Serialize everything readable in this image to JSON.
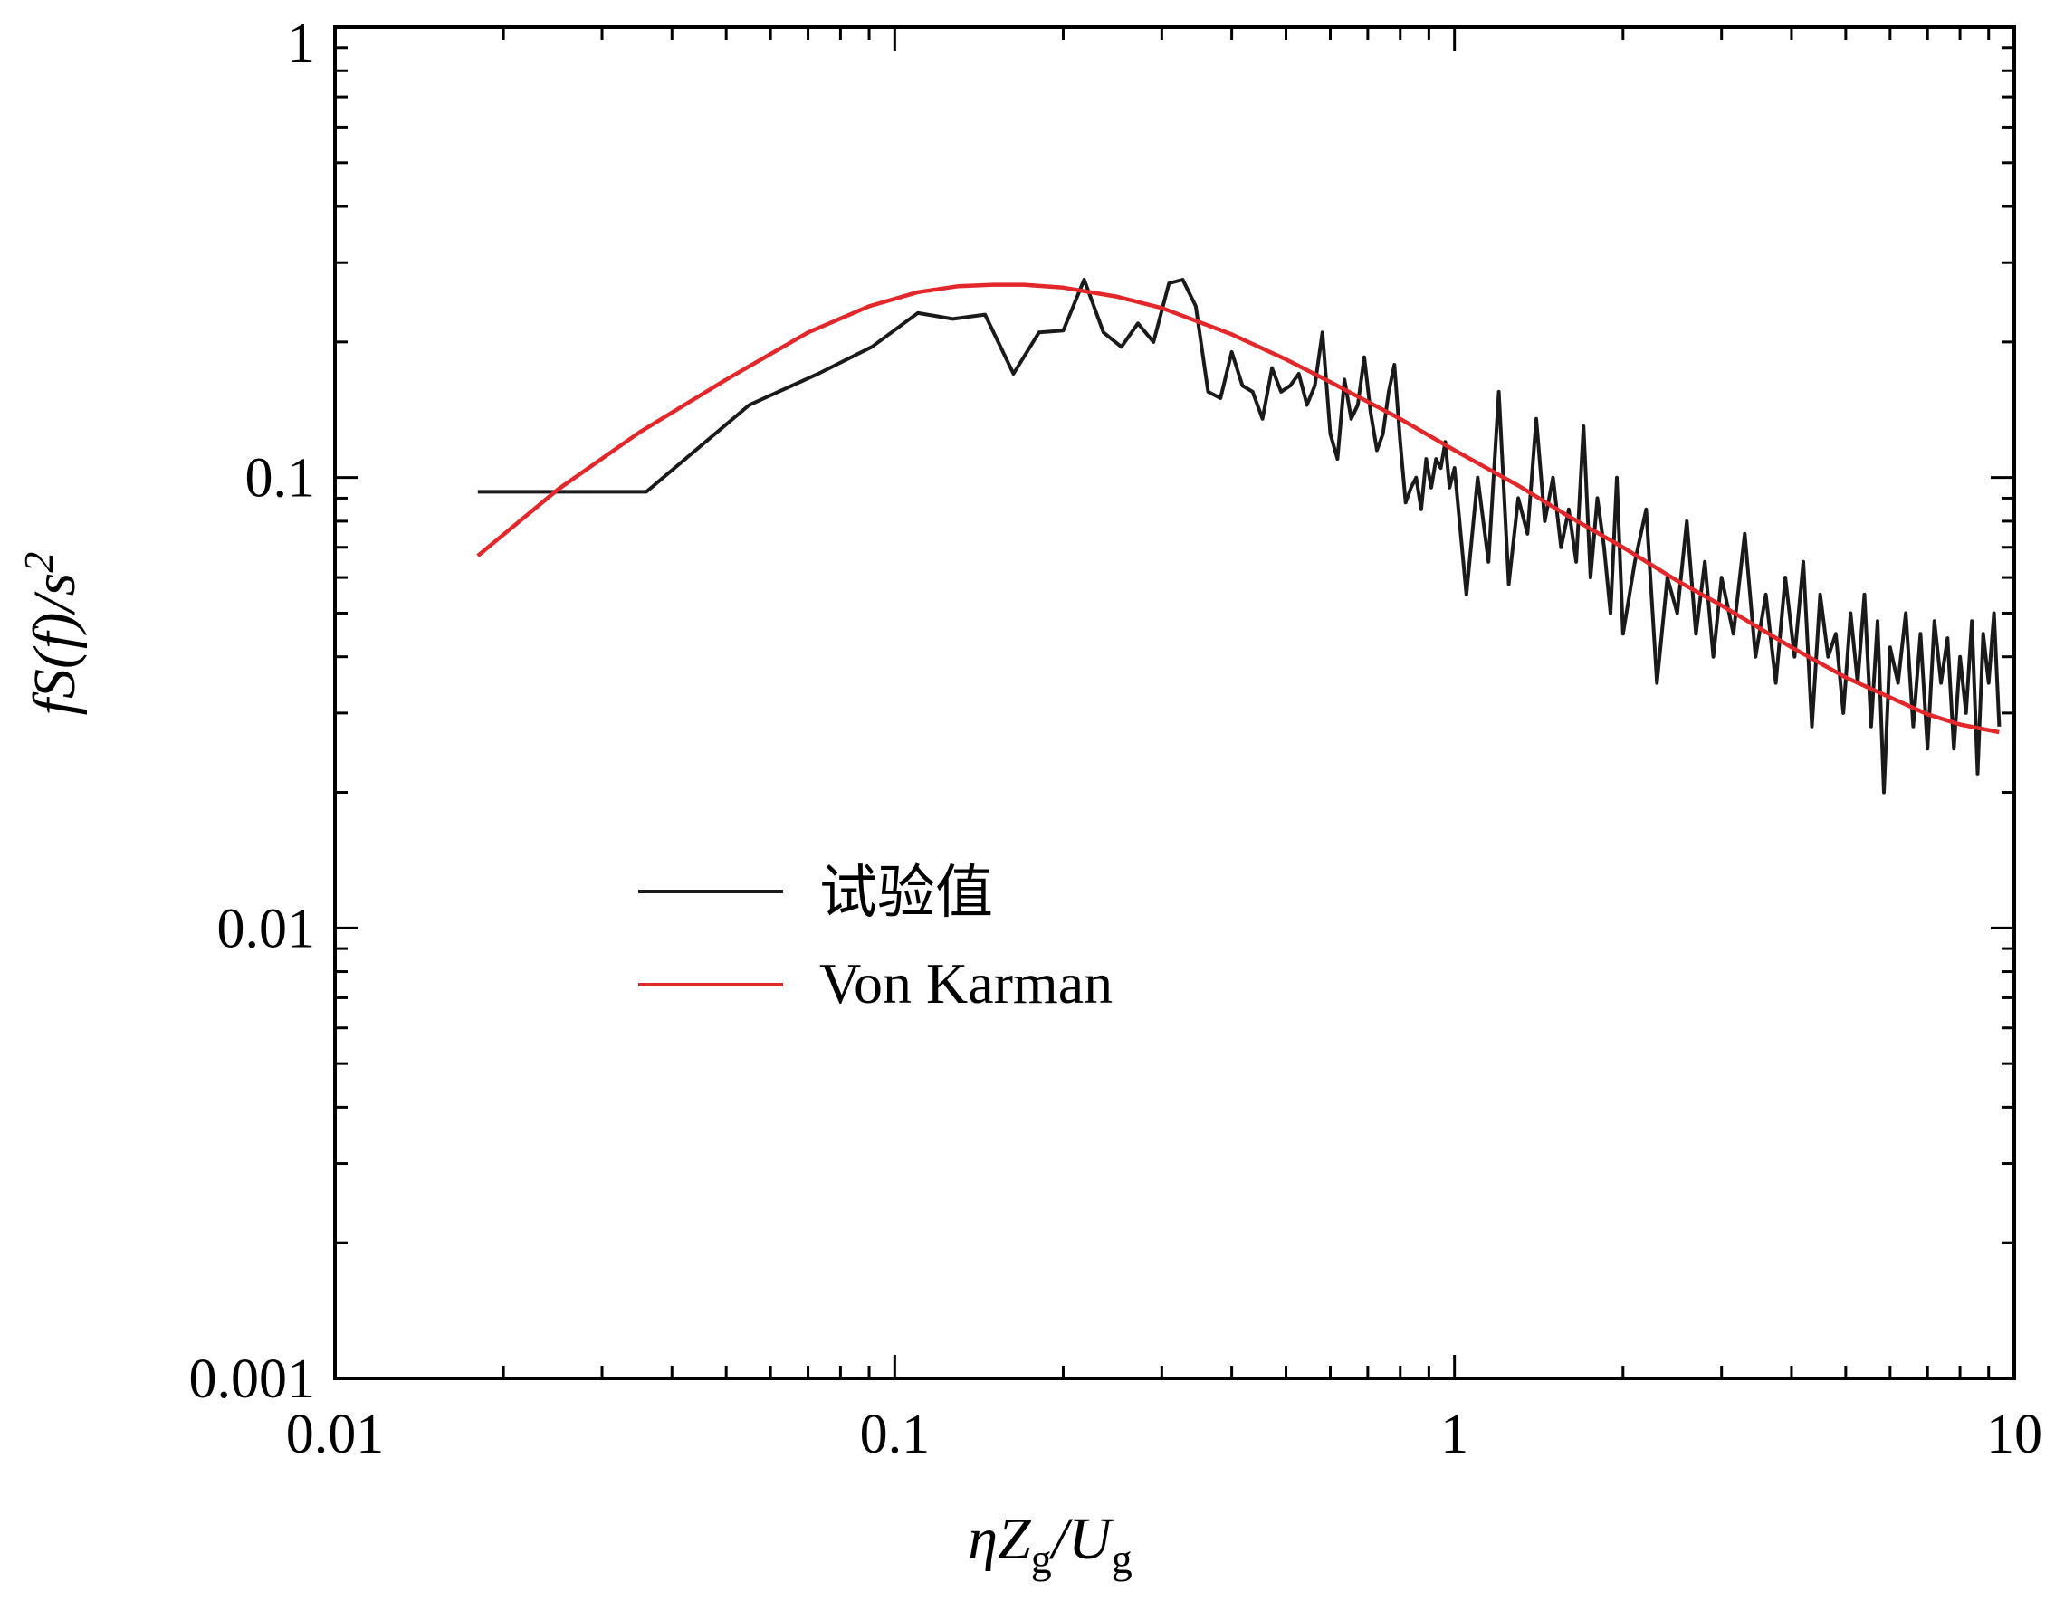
{
  "chart_data": {
    "type": "line",
    "xscale": "log",
    "yscale": "log",
    "xlim": [
      0.01,
      10
    ],
    "ylim": [
      0.001,
      1
    ],
    "xticks": [
      {
        "value": 0.01,
        "label": "0.01"
      },
      {
        "value": 0.1,
        "label": "0.1"
      },
      {
        "value": 1,
        "label": "1"
      },
      {
        "value": 10,
        "label": "10"
      }
    ],
    "yticks": [
      {
        "value": 0.001,
        "label": "0.001"
      },
      {
        "value": 0.01,
        "label": "0.01"
      },
      {
        "value": 0.1,
        "label": "0.1"
      },
      {
        "value": 1,
        "label": "1"
      }
    ],
    "xlabel": {
      "main": "ηZ",
      "sub1": "g",
      "mid": "/U",
      "sub2": "g"
    },
    "ylabel": {
      "main": "fS(f)/s",
      "sup": "2"
    },
    "grid": false,
    "legend_position": "center-left",
    "series": [
      {
        "name": "试验值",
        "color": "#1a1a1a",
        "x": [
          0.018,
          0.036,
          0.055,
          0.073,
          0.091,
          0.11,
          0.127,
          0.145,
          0.163,
          0.181,
          0.2,
          0.218,
          0.236,
          0.254,
          0.272,
          0.29,
          0.309,
          0.327,
          0.345,
          0.363,
          0.382,
          0.4,
          0.418,
          0.436,
          0.454,
          0.472,
          0.49,
          0.509,
          0.527,
          0.545,
          0.563,
          0.581,
          0.6,
          0.618,
          0.636,
          0.654,
          0.672,
          0.69,
          0.708,
          0.727,
          0.745,
          0.763,
          0.781,
          0.8,
          0.818,
          0.836,
          0.854,
          0.872,
          0.89,
          0.909,
          0.927,
          0.945,
          0.963,
          0.98,
          1.0,
          1.05,
          1.1,
          1.15,
          1.2,
          1.25,
          1.3,
          1.35,
          1.4,
          1.45,
          1.5,
          1.55,
          1.6,
          1.65,
          1.7,
          1.75,
          1.8,
          1.85,
          1.9,
          1.95,
          2.0,
          2.1,
          2.2,
          2.3,
          2.4,
          2.5,
          2.6,
          2.7,
          2.8,
          2.9,
          3.0,
          3.15,
          3.3,
          3.45,
          3.6,
          3.75,
          3.9,
          4.05,
          4.2,
          4.35,
          4.5,
          4.65,
          4.8,
          4.95,
          5.1,
          5.25,
          5.4,
          5.55,
          5.7,
          5.85,
          6.0,
          6.2,
          6.4,
          6.6,
          6.8,
          7.0,
          7.2,
          7.4,
          7.6,
          7.8,
          8.0,
          8.2,
          8.4,
          8.6,
          8.8,
          9.0,
          9.2,
          9.4
        ],
        "y": [
          0.093,
          0.093,
          0.145,
          0.17,
          0.195,
          0.232,
          0.225,
          0.23,
          0.17,
          0.21,
          0.212,
          0.275,
          0.21,
          0.195,
          0.22,
          0.2,
          0.27,
          0.275,
          0.24,
          0.155,
          0.15,
          0.19,
          0.16,
          0.155,
          0.135,
          0.175,
          0.155,
          0.16,
          0.17,
          0.145,
          0.16,
          0.21,
          0.125,
          0.11,
          0.165,
          0.135,
          0.145,
          0.185,
          0.14,
          0.115,
          0.125,
          0.155,
          0.178,
          0.12,
          0.088,
          0.095,
          0.1,
          0.085,
          0.11,
          0.095,
          0.11,
          0.105,
          0.12,
          0.095,
          0.105,
          0.055,
          0.1,
          0.065,
          0.155,
          0.058,
          0.09,
          0.075,
          0.135,
          0.08,
          0.1,
          0.07,
          0.085,
          0.065,
          0.13,
          0.06,
          0.09,
          0.07,
          0.05,
          0.1,
          0.045,
          0.065,
          0.085,
          0.035,
          0.06,
          0.05,
          0.08,
          0.045,
          0.065,
          0.04,
          0.06,
          0.045,
          0.075,
          0.04,
          0.055,
          0.035,
          0.06,
          0.04,
          0.065,
          0.028,
          0.055,
          0.04,
          0.045,
          0.03,
          0.05,
          0.035,
          0.055,
          0.028,
          0.048,
          0.02,
          0.042,
          0.035,
          0.05,
          0.028,
          0.045,
          0.025,
          0.048,
          0.035,
          0.044,
          0.025,
          0.04,
          0.03,
          0.048,
          0.022,
          0.045,
          0.035,
          0.05,
          0.028
        ]
      },
      {
        "name": "Von Karman",
        "color": "#e3282c",
        "x": [
          0.018,
          0.025,
          0.035,
          0.05,
          0.07,
          0.09,
          0.11,
          0.13,
          0.15,
          0.17,
          0.2,
          0.25,
          0.3,
          0.4,
          0.5,
          0.6,
          0.8,
          1.0,
          1.3,
          1.6,
          2.0,
          2.5,
          3.0,
          4.0,
          5.0,
          6.0,
          7.0,
          8.0,
          9.4
        ],
        "y": [
          0.067,
          0.094,
          0.126,
          0.165,
          0.21,
          0.24,
          0.258,
          0.266,
          0.268,
          0.268,
          0.264,
          0.252,
          0.238,
          0.208,
          0.183,
          0.163,
          0.135,
          0.115,
          0.096,
          0.082,
          0.07,
          0.059,
          0.052,
          0.042,
          0.036,
          0.0325,
          0.0298,
          0.0283,
          0.0272
        ]
      }
    ]
  }
}
